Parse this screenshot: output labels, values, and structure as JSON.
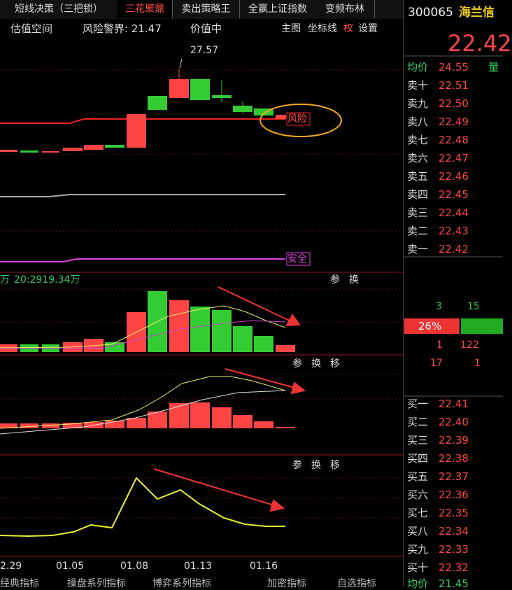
{
  "tabs": [
    "短线决策（三把锁）",
    "三花聚鼎",
    "卖出策略王",
    "全赢上证指数",
    "变频布林"
  ],
  "toolbar": {
    "items": [
      "估值空间",
      "风险警界: 21.47",
      "价值中"
    ],
    "buttons": [
      "主图",
      "坐标线",
      "权",
      "设置"
    ]
  },
  "stock": {
    "code": "300065",
    "name": "海兰信",
    "price": "22.42"
  },
  "main_chart": {
    "high_label": "27.57",
    "risk_label": "风险",
    "safe_label": "安全"
  },
  "volume_panel": {
    "unit": "万",
    "info": "20:2919.34万",
    "buttons": [
      "参",
      "换"
    ]
  },
  "panel2": {
    "buttons": [
      "参",
      "换",
      "移"
    ]
  },
  "panel3": {
    "buttons": [
      "参",
      "换",
      "移"
    ]
  },
  "dates": [
    "2.29",
    "01.05",
    "01.08",
    "01.13",
    "01.16"
  ],
  "bottom_tabs": [
    "经典指标",
    "操盘系列指标",
    "博弈系列指标",
    "加密指标",
    "自选指标"
  ],
  "order_book": {
    "avg_label": "均价",
    "avg": "24.55",
    "vol_label": "量",
    "asks": [
      [
        "卖十",
        "22.51"
      ],
      [
        "卖九",
        "22.50"
      ],
      [
        "卖八",
        "22.49"
      ],
      [
        "卖七",
        "22.48"
      ],
      [
        "卖六",
        "22.47"
      ],
      [
        "卖五",
        "22.46"
      ],
      [
        "卖四",
        "22.45"
      ],
      [
        "卖三",
        "22.44"
      ],
      [
        "卖二",
        "22.43"
      ],
      [
        "卖一",
        "22.42"
      ]
    ],
    "stats": {
      "a": "3",
      "b": "15",
      "ratio": "26%",
      "c": "1",
      "d": "122",
      "e": "17",
      "f": "1"
    },
    "bids": [
      [
        "买一",
        "22.41"
      ],
      [
        "买二",
        "22.40"
      ],
      [
        "买三",
        "22.39"
      ],
      [
        "买四",
        "22.38"
      ],
      [
        "买五",
        "22.37"
      ],
      [
        "买六",
        "22.36"
      ],
      [
        "买七",
        "22.35"
      ],
      [
        "买八",
        "22.34"
      ],
      [
        "买九",
        "22.33"
      ],
      [
        "买十",
        "22.32"
      ]
    ],
    "bottom_label": "均价",
    "bottom_avg": "21.45"
  }
}
